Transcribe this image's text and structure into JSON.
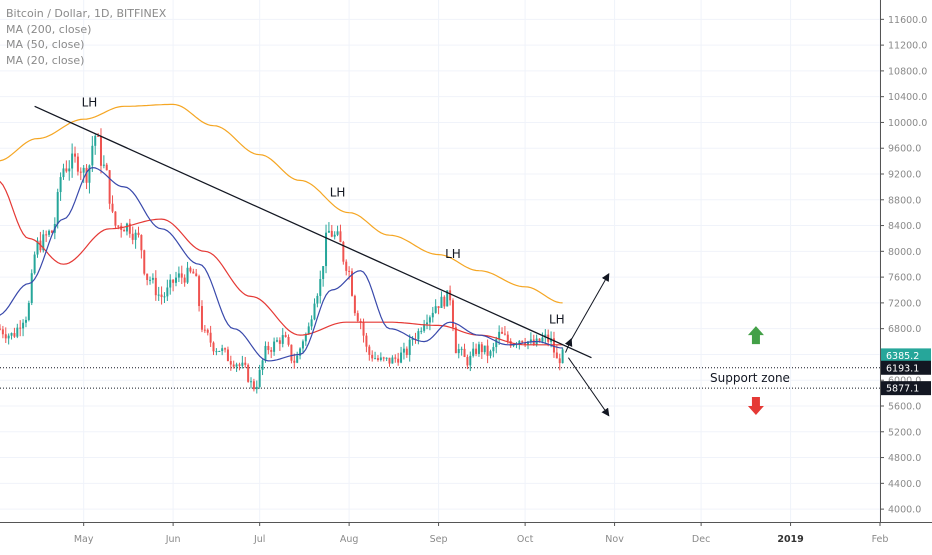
{
  "header": {
    "symbol_line": "Bitcoin / Dollar, 1D, BITFINEX",
    "indicators": [
      "MA (200, close)",
      "MA (50, close)",
      "MA (20, close)"
    ]
  },
  "colors": {
    "up": "#26a69a",
    "down": "#ef5350",
    "ma200": "#f5a623",
    "ma50": "#e53935",
    "ma20": "#3949ab",
    "trendline": "#131722",
    "grid": "#f0f3fa",
    "axis_text": "#8a8a8a",
    "up_arrow": "#43a047",
    "down_arrow": "#e53935",
    "last_price_bg": "#26a69a"
  },
  "chart_data": {
    "type": "candlestick",
    "symbol": "Bitcoin / Dollar",
    "interval": "1D",
    "exchange": "BITFINEX",
    "x_axis_labels": [
      {
        "label": "May",
        "date": "2018-05-01"
      },
      {
        "label": "Jun",
        "date": "2018-06-01"
      },
      {
        "label": "Jul",
        "date": "2018-07-01"
      },
      {
        "label": "Aug",
        "date": "2018-08-01"
      },
      {
        "label": "Sep",
        "date": "2018-09-01"
      },
      {
        "label": "Oct",
        "date": "2018-10-01"
      },
      {
        "label": "Nov",
        "date": "2018-11-01"
      },
      {
        "label": "Dec",
        "date": "2018-12-01"
      },
      {
        "label": "2019",
        "date": "2019-01-01"
      },
      {
        "label": "Feb",
        "date": "2019-02-01"
      }
    ],
    "x_range": [
      "2018-04-02",
      "2019-02-01"
    ],
    "y_ticks": [
      4000,
      4400,
      4800,
      5200,
      5600,
      6000,
      6400,
      6800,
      7200,
      7600,
      8000,
      8400,
      8800,
      9200,
      9600,
      10000,
      10400,
      10800,
      11200,
      11600
    ],
    "y_tick_labels": [
      "4000.0",
      "4400.0",
      "4800.0",
      "5200.0",
      "5600.0",
      "6000.0",
      "6400.0",
      "6800.0",
      "7200.0",
      "7600.0",
      "8000.0",
      "8400.0",
      "8800.0",
      "9200.0",
      "9600.0",
      "10000.0",
      "10400.0",
      "10800.0",
      "11200.0",
      "11600.0"
    ],
    "ylim": [
      3800,
      11900
    ],
    "price_anchors": [
      [
        "2018-04-01",
        6800
      ],
      [
        "2018-04-06",
        6700
      ],
      [
        "2018-04-11",
        7000
      ],
      [
        "2018-04-15",
        8100
      ],
      [
        "2018-04-20",
        8300
      ],
      [
        "2018-04-24",
        9300
      ],
      [
        "2018-04-28",
        9400
      ],
      [
        "2018-05-02",
        9200
      ],
      [
        "2018-05-05",
        9800
      ],
      [
        "2018-05-08",
        9300
      ],
      [
        "2018-05-12",
        8400
      ],
      [
        "2018-05-16",
        8400
      ],
      [
        "2018-05-20",
        8200
      ],
      [
        "2018-05-23",
        7600
      ],
      [
        "2018-05-28",
        7300
      ],
      [
        "2018-06-03",
        7600
      ],
      [
        "2018-06-08",
        7650
      ],
      [
        "2018-06-12",
        6700
      ],
      [
        "2018-06-16",
        6500
      ],
      [
        "2018-06-22",
        6300
      ],
      [
        "2018-06-25",
        6200
      ],
      [
        "2018-06-29",
        5900
      ],
      [
        "2018-07-04",
        6500
      ],
      [
        "2018-07-09",
        6650
      ],
      [
        "2018-07-13",
        6300
      ],
      [
        "2018-07-17",
        6700
      ],
      [
        "2018-07-21",
        7400
      ],
      [
        "2018-07-25",
        8300
      ],
      [
        "2018-07-28",
        8200
      ],
      [
        "2018-07-31",
        7800
      ],
      [
        "2018-08-04",
        7000
      ],
      [
        "2018-08-08",
        6400
      ],
      [
        "2018-08-12",
        6300
      ],
      [
        "2018-08-15",
        6300
      ],
      [
        "2018-08-20",
        6400
      ],
      [
        "2018-08-24",
        6700
      ],
      [
        "2018-08-28",
        7000
      ],
      [
        "2018-09-01",
        7200
      ],
      [
        "2018-09-05",
        7300
      ],
      [
        "2018-09-07",
        6500
      ],
      [
        "2018-09-11",
        6300
      ],
      [
        "2018-09-15",
        6500
      ],
      [
        "2018-09-19",
        6400
      ],
      [
        "2018-09-22",
        6700
      ],
      [
        "2018-09-26",
        6600
      ],
      [
        "2018-09-30",
        6650
      ],
      [
        "2018-10-04",
        6550
      ],
      [
        "2018-10-08",
        6650
      ],
      [
        "2018-10-10",
        6600
      ],
      [
        "2018-10-12",
        6300
      ],
      [
        "2018-10-14",
        6385
      ]
    ],
    "ma200_anchors": [
      [
        "2018-04-01",
        9400
      ],
      [
        "2018-04-15",
        9750
      ],
      [
        "2018-05-01",
        10050
      ],
      [
        "2018-05-15",
        10250
      ],
      [
        "2018-06-01",
        10280
      ],
      [
        "2018-06-15",
        9950
      ],
      [
        "2018-07-01",
        9500
      ],
      [
        "2018-07-15",
        9100
      ],
      [
        "2018-08-01",
        8600
      ],
      [
        "2018-08-15",
        8250
      ],
      [
        "2018-09-01",
        7950
      ],
      [
        "2018-09-15",
        7700
      ],
      [
        "2018-10-01",
        7450
      ],
      [
        "2018-10-14",
        7200
      ]
    ],
    "ma50_anchors": [
      [
        "2018-04-01",
        9100
      ],
      [
        "2018-04-12",
        8200
      ],
      [
        "2018-04-24",
        7800
      ],
      [
        "2018-05-10",
        8350
      ],
      [
        "2018-05-28",
        8500
      ],
      [
        "2018-06-12",
        8000
      ],
      [
        "2018-06-28",
        7300
      ],
      [
        "2018-07-15",
        6700
      ],
      [
        "2018-07-31",
        6900
      ],
      [
        "2018-08-15",
        6900
      ],
      [
        "2018-09-01",
        6850
      ],
      [
        "2018-09-15",
        6700
      ],
      [
        "2018-10-01",
        6550
      ],
      [
        "2018-10-14",
        6550
      ]
    ],
    "ma20_anchors": [
      [
        "2018-04-01",
        7000
      ],
      [
        "2018-04-12",
        7500
      ],
      [
        "2018-04-24",
        8500
      ],
      [
        "2018-05-04",
        9300
      ],
      [
        "2018-05-15",
        9000
      ],
      [
        "2018-05-28",
        8350
      ],
      [
        "2018-06-10",
        7800
      ],
      [
        "2018-06-22",
        6800
      ],
      [
        "2018-07-04",
        6300
      ],
      [
        "2018-07-15",
        6400
      ],
      [
        "2018-07-26",
        7400
      ],
      [
        "2018-08-05",
        7700
      ],
      [
        "2018-08-15",
        6800
      ],
      [
        "2018-08-27",
        6600
      ],
      [
        "2018-09-05",
        6900
      ],
      [
        "2018-09-15",
        6700
      ],
      [
        "2018-09-25",
        6550
      ],
      [
        "2018-10-05",
        6600
      ],
      [
        "2018-10-14",
        6500
      ]
    ],
    "trendline": {
      "start": [
        "2018-04-14",
        10250
      ],
      "end": [
        "2018-10-24",
        6350
      ]
    },
    "lh_labels": [
      {
        "text": "LH",
        "date": "2018-05-03",
        "price": 10250
      },
      {
        "text": "LH",
        "date": "2018-07-28",
        "price": 8850
      },
      {
        "text": "LH",
        "date": "2018-09-06",
        "price": 7900
      },
      {
        "text": "LH",
        "date": "2018-10-12",
        "price": 6880
      }
    ],
    "projections": [
      {
        "from": [
          "2018-10-15",
          6430
        ],
        "to": [
          "2018-10-17",
          6640
        ]
      },
      {
        "from": [
          "2018-10-16",
          6550
        ],
        "to": [
          "2018-10-30",
          7650
        ]
      },
      {
        "from": [
          "2018-10-16",
          6350
        ],
        "to": [
          "2018-10-30",
          5450
        ]
      }
    ],
    "support_zone": {
      "label": "Support zone",
      "top": 6193.1,
      "bottom": 5877.1,
      "top_label": "6193.1",
      "bottom_label": "5877.1"
    },
    "last_price": {
      "value": 6385.2,
      "label": "6385.2"
    },
    "up_arrow": {
      "date": "2018-12-20",
      "price": 6700
    },
    "down_arrow": {
      "date": "2018-12-20",
      "price": 5600
    }
  }
}
